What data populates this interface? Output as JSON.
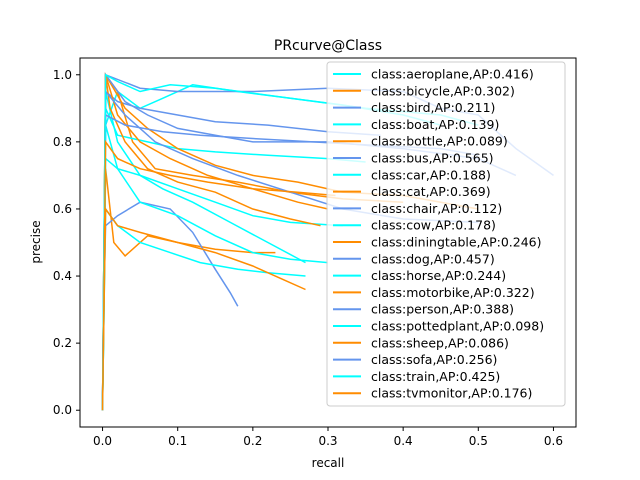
{
  "chart_data": {
    "type": "line",
    "title": "PRcurve@Class",
    "xlabel": "recall",
    "ylabel": "precise",
    "xlim": [
      -0.03,
      0.63
    ],
    "ylim": [
      -0.05,
      1.05
    ],
    "x_ticks": [
      "0.0",
      "0.1",
      "0.2",
      "0.3",
      "0.4",
      "0.5",
      "0.6"
    ],
    "x_tick_values": [
      0.0,
      0.1,
      0.2,
      0.3,
      0.4,
      0.5,
      0.6
    ],
    "y_ticks": [
      "0.0",
      "0.2",
      "0.4",
      "0.6",
      "0.8",
      "1.0"
    ],
    "y_tick_values": [
      0.0,
      0.2,
      0.4,
      0.6,
      0.8,
      1.0
    ],
    "grid": false,
    "legend_position": "right",
    "series": [
      {
        "name": "class:aeroplane,AP:0.416)",
        "color": "#00ffff",
        "points": [
          [
            0,
            0
          ],
          [
            0.002,
            0.3
          ],
          [
            0.004,
            0.85
          ],
          [
            0.02,
            0.95
          ],
          [
            0.05,
            0.9
          ],
          [
            0.08,
            0.93
          ],
          [
            0.12,
            0.97
          ],
          [
            0.18,
            0.95
          ],
          [
            0.25,
            0.93
          ],
          [
            0.32,
            0.91
          ],
          [
            0.4,
            0.88
          ],
          [
            0.45,
            0.85
          ]
        ]
      },
      {
        "name": "class:bicycle,AP:0.302)",
        "color": "#ff8c00",
        "points": [
          [
            0,
            0
          ],
          [
            0.002,
            0.4
          ],
          [
            0.004,
            1.0
          ],
          [
            0.02,
            0.95
          ],
          [
            0.04,
            0.8
          ],
          [
            0.07,
            0.72
          ],
          [
            0.12,
            0.7
          ],
          [
            0.18,
            0.68
          ],
          [
            0.25,
            0.65
          ],
          [
            0.32,
            0.63
          ],
          [
            0.4,
            0.62
          ]
        ]
      },
      {
        "name": "class:bird,AP:0.211)",
        "color": "#6495ed",
        "points": [
          [
            0,
            0
          ],
          [
            0.002,
            0.5
          ],
          [
            0.004,
            0.95
          ],
          [
            0.02,
            0.92
          ],
          [
            0.05,
            0.9
          ],
          [
            0.1,
            0.88
          ],
          [
            0.15,
            0.86
          ],
          [
            0.22,
            0.85
          ],
          [
            0.3,
            0.83
          ],
          [
            0.37,
            0.82
          ]
        ]
      },
      {
        "name": "class:boat,AP:0.139)",
        "color": "#00ffff",
        "points": [
          [
            0,
            0
          ],
          [
            0.002,
            0.45
          ],
          [
            0.004,
            0.95
          ],
          [
            0.02,
            0.8
          ],
          [
            0.05,
            0.7
          ],
          [
            0.08,
            0.66
          ],
          [
            0.12,
            0.62
          ],
          [
            0.17,
            0.56
          ],
          [
            0.22,
            0.5
          ],
          [
            0.27,
            0.44
          ]
        ]
      },
      {
        "name": "class:bottle,AP:0.089)",
        "color": "#ff8c00",
        "points": [
          [
            0,
            0
          ],
          [
            0.002,
            0.35
          ],
          [
            0.004,
            0.72
          ],
          [
            0.015,
            0.5
          ],
          [
            0.03,
            0.46
          ],
          [
            0.06,
            0.52
          ],
          [
            0.1,
            0.5
          ],
          [
            0.15,
            0.48
          ],
          [
            0.2,
            0.47
          ],
          [
            0.23,
            0.47
          ]
        ]
      },
      {
        "name": "class:bus,AP:0.565)",
        "color": "#6495ed",
        "points": [
          [
            0,
            0
          ],
          [
            0.002,
            0.5
          ],
          [
            0.004,
            1.0
          ],
          [
            0.05,
            0.96
          ],
          [
            0.1,
            0.95
          ],
          [
            0.2,
            0.95
          ],
          [
            0.3,
            0.96
          ],
          [
            0.4,
            0.95
          ],
          [
            0.45,
            0.9
          ],
          [
            0.5,
            0.88
          ],
          [
            0.55,
            0.78
          ],
          [
            0.6,
            0.7
          ]
        ]
      },
      {
        "name": "class:car,AP:0.188)",
        "color": "#00ffff",
        "points": [
          [
            0,
            0
          ],
          [
            0.002,
            0.4
          ],
          [
            0.004,
            0.9
          ],
          [
            0.02,
            0.82
          ],
          [
            0.06,
            0.8
          ],
          [
            0.1,
            0.78
          ],
          [
            0.15,
            0.77
          ],
          [
            0.22,
            0.76
          ],
          [
            0.3,
            0.75
          ],
          [
            0.35,
            0.74
          ]
        ]
      },
      {
        "name": "class:cat,AP:0.369)",
        "color": "#ff8c00",
        "points": [
          [
            0,
            0
          ],
          [
            0.002,
            0.5
          ],
          [
            0.004,
            1.0
          ],
          [
            0.03,
            0.9
          ],
          [
            0.06,
            0.84
          ],
          [
            0.1,
            0.78
          ],
          [
            0.15,
            0.73
          ],
          [
            0.2,
            0.7
          ],
          [
            0.26,
            0.68
          ],
          [
            0.32,
            0.65
          ],
          [
            0.4,
            0.64
          ],
          [
            0.5,
            0.6
          ]
        ]
      },
      {
        "name": "class:chair,AP:0.112)",
        "color": "#6495ed",
        "points": [
          [
            0,
            0
          ],
          [
            0.002,
            0.35
          ],
          [
            0.004,
            0.55
          ],
          [
            0.02,
            0.58
          ],
          [
            0.05,
            0.62
          ],
          [
            0.09,
            0.6
          ],
          [
            0.12,
            0.53
          ],
          [
            0.15,
            0.42
          ],
          [
            0.17,
            0.35
          ],
          [
            0.18,
            0.31
          ]
        ]
      },
      {
        "name": "class:cow,AP:0.178)",
        "color": "#00ffff",
        "points": [
          [
            0,
            0
          ],
          [
            0.002,
            0.3
          ],
          [
            0.004,
            0.75
          ],
          [
            0.02,
            0.72
          ],
          [
            0.05,
            0.7
          ],
          [
            0.1,
            0.66
          ],
          [
            0.15,
            0.62
          ],
          [
            0.2,
            0.58
          ],
          [
            0.25,
            0.56
          ],
          [
            0.32,
            0.55
          ]
        ]
      },
      {
        "name": "class:diningtable,AP:0.246)",
        "color": "#ff8c00",
        "points": [
          [
            0,
            0
          ],
          [
            0.002,
            0.4
          ],
          [
            0.004,
            1.0
          ],
          [
            0.01,
            0.9
          ],
          [
            0.03,
            0.8
          ],
          [
            0.06,
            0.72
          ],
          [
            0.1,
            0.68
          ],
          [
            0.15,
            0.65
          ],
          [
            0.2,
            0.6
          ],
          [
            0.25,
            0.57
          ],
          [
            0.29,
            0.55
          ]
        ]
      },
      {
        "name": "class:dog,AP:0.457)",
        "color": "#6495ed",
        "points": [
          [
            0,
            0
          ],
          [
            0.002,
            0.45
          ],
          [
            0.004,
            1.0
          ],
          [
            0.03,
            0.92
          ],
          [
            0.06,
            0.88
          ],
          [
            0.1,
            0.84
          ],
          [
            0.15,
            0.82
          ],
          [
            0.2,
            0.8
          ],
          [
            0.3,
            0.8
          ],
          [
            0.4,
            0.78
          ],
          [
            0.5,
            0.75
          ],
          [
            0.55,
            0.7
          ]
        ]
      },
      {
        "name": "class:horse,AP:0.244)",
        "color": "#00ffff",
        "points": [
          [
            0,
            0
          ],
          [
            0.002,
            0.35
          ],
          [
            0.004,
            0.85
          ],
          [
            0.02,
            0.72
          ],
          [
            0.05,
            0.62
          ],
          [
            0.1,
            0.58
          ],
          [
            0.15,
            0.52
          ],
          [
            0.2,
            0.47
          ],
          [
            0.25,
            0.45
          ],
          [
            0.3,
            0.44
          ]
        ]
      },
      {
        "name": "class:motorbike,AP:0.322)",
        "color": "#ff8c00",
        "points": [
          [
            0,
            0
          ],
          [
            0.002,
            0.5
          ],
          [
            0.004,
            1.0
          ],
          [
            0.02,
            0.88
          ],
          [
            0.05,
            0.8
          ],
          [
            0.09,
            0.75
          ],
          [
            0.14,
            0.7
          ],
          [
            0.2,
            0.66
          ],
          [
            0.26,
            0.62
          ],
          [
            0.3,
            0.6
          ]
        ]
      },
      {
        "name": "class:person,AP:0.388)",
        "color": "#6495ed",
        "points": [
          [
            0,
            0
          ],
          [
            0.002,
            0.5
          ],
          [
            0.004,
            0.88
          ],
          [
            0.03,
            0.85
          ],
          [
            0.08,
            0.83
          ],
          [
            0.13,
            0.82
          ],
          [
            0.2,
            0.81
          ],
          [
            0.28,
            0.8
          ],
          [
            0.36,
            0.79
          ],
          [
            0.45,
            0.78
          ],
          [
            0.5,
            0.76
          ]
        ]
      },
      {
        "name": "class:pottedplant,AP:0.098)",
        "color": "#00ffff",
        "points": [
          [
            0,
            0
          ],
          [
            0.002,
            0.3
          ],
          [
            0.004,
            0.6
          ],
          [
            0.02,
            0.55
          ],
          [
            0.05,
            0.5
          ],
          [
            0.09,
            0.47
          ],
          [
            0.13,
            0.44
          ],
          [
            0.18,
            0.42
          ],
          [
            0.22,
            0.41
          ],
          [
            0.27,
            0.4
          ]
        ]
      },
      {
        "name": "class:sheep,AP:0.086)",
        "color": "#ff8c00",
        "points": [
          [
            0,
            0
          ],
          [
            0.002,
            0.3
          ],
          [
            0.004,
            0.6
          ],
          [
            0.02,
            0.55
          ],
          [
            0.05,
            0.53
          ],
          [
            0.1,
            0.5
          ],
          [
            0.15,
            0.47
          ],
          [
            0.2,
            0.43
          ],
          [
            0.24,
            0.39
          ],
          [
            0.27,
            0.36
          ]
        ]
      },
      {
        "name": "class:sofa,AP:0.256)",
        "color": "#6495ed",
        "points": [
          [
            0,
            0
          ],
          [
            0.002,
            0.45
          ],
          [
            0.004,
            0.95
          ],
          [
            0.03,
            0.88
          ],
          [
            0.07,
            0.8
          ],
          [
            0.12,
            0.75
          ],
          [
            0.18,
            0.7
          ],
          [
            0.25,
            0.65
          ],
          [
            0.32,
            0.6
          ],
          [
            0.4,
            0.57
          ],
          [
            0.5,
            0.56
          ]
        ]
      },
      {
        "name": "class:train,AP:0.425)",
        "color": "#00ffff",
        "points": [
          [
            0,
            0
          ],
          [
            0.002,
            0.5
          ],
          [
            0.004,
            1.0
          ],
          [
            0.02,
            0.98
          ],
          [
            0.05,
            0.95
          ],
          [
            0.09,
            0.97
          ],
          [
            0.15,
            0.96
          ],
          [
            0.25,
            0.93
          ],
          [
            0.35,
            0.9
          ],
          [
            0.45,
            0.88
          ],
          [
            0.5,
            0.85
          ]
        ]
      },
      {
        "name": "class:tvmonitor,AP:0.176)",
        "color": "#ff8c00",
        "points": [
          [
            0,
            0
          ],
          [
            0.002,
            0.35
          ],
          [
            0.004,
            0.8
          ],
          [
            0.02,
            0.75
          ],
          [
            0.05,
            0.72
          ],
          [
            0.09,
            0.7
          ],
          [
            0.14,
            0.68
          ],
          [
            0.2,
            0.66
          ],
          [
            0.26,
            0.65
          ],
          [
            0.31,
            0.64
          ]
        ]
      }
    ]
  }
}
